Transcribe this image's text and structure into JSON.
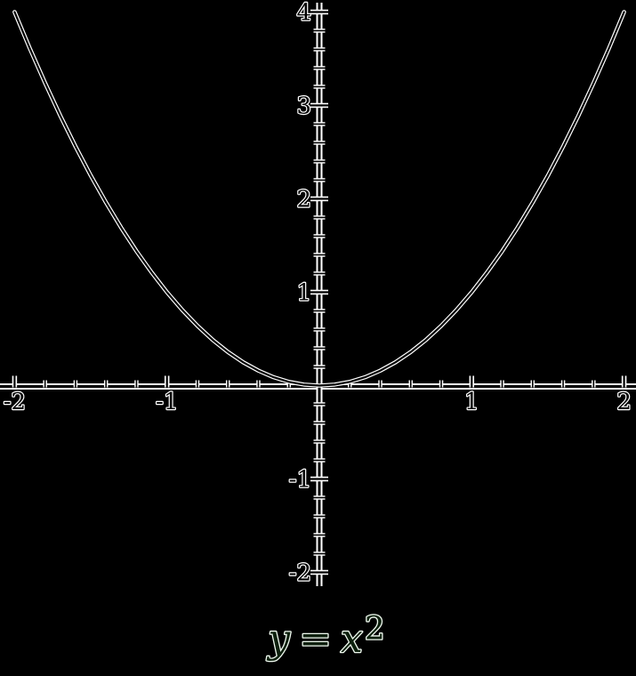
{
  "page": {
    "background": "#000000"
  },
  "colors": {
    "stroke": "#ffffff",
    "core": "#000000",
    "label_fill": "#000000",
    "label_stroke": "#ffffff",
    "caption_stroke": "#eef8ee",
    "caption_fill": "#0d200d"
  },
  "caption": {
    "lhs": "y",
    "eq": "=",
    "rhs": "x",
    "sup": "2"
  },
  "chart_data": {
    "type": "line",
    "title": "",
    "equation": "y = x^2",
    "xlabel": "",
    "ylabel": "",
    "x_range": [
      -2,
      2
    ],
    "y_range": [
      -2,
      4
    ],
    "x_major_ticks": [
      -2,
      -1,
      1,
      2
    ],
    "x_tick_labels": [
      "-2",
      "-1",
      "1",
      "2"
    ],
    "y_major_ticks": [
      -2,
      -1,
      1,
      2,
      3,
      4
    ],
    "y_tick_labels": [
      "-2",
      "-1",
      "1",
      "2",
      "3",
      "4"
    ],
    "minor_tick_step": 0.2,
    "grid": false,
    "legend": false,
    "curve_points": {
      "x": [
        -2.0,
        -1.9,
        -1.8,
        -1.7,
        -1.6,
        -1.5,
        -1.4,
        -1.3,
        -1.2,
        -1.1,
        -1.0,
        -0.9,
        -0.8,
        -0.7,
        -0.6,
        -0.5,
        -0.4,
        -0.3,
        -0.2,
        -0.1,
        0.0,
        0.1,
        0.2,
        0.3,
        0.4,
        0.5,
        0.6,
        0.7,
        0.8,
        0.9,
        1.0,
        1.1,
        1.2,
        1.3,
        1.4,
        1.5,
        1.6,
        1.7,
        1.8,
        1.9,
        2.0
      ],
      "y": [
        4.0,
        3.61,
        3.24,
        2.89,
        2.56,
        2.25,
        1.96,
        1.69,
        1.44,
        1.21,
        1.0,
        0.81,
        0.64,
        0.49,
        0.36,
        0.25,
        0.16,
        0.09,
        0.04,
        0.01,
        0.0,
        0.01,
        0.04,
        0.09,
        0.16,
        0.25,
        0.36,
        0.49,
        0.64,
        0.81,
        1.0,
        1.21,
        1.44,
        1.69,
        1.96,
        2.25,
        2.56,
        2.89,
        3.24,
        3.61,
        4.0
      ]
    }
  }
}
